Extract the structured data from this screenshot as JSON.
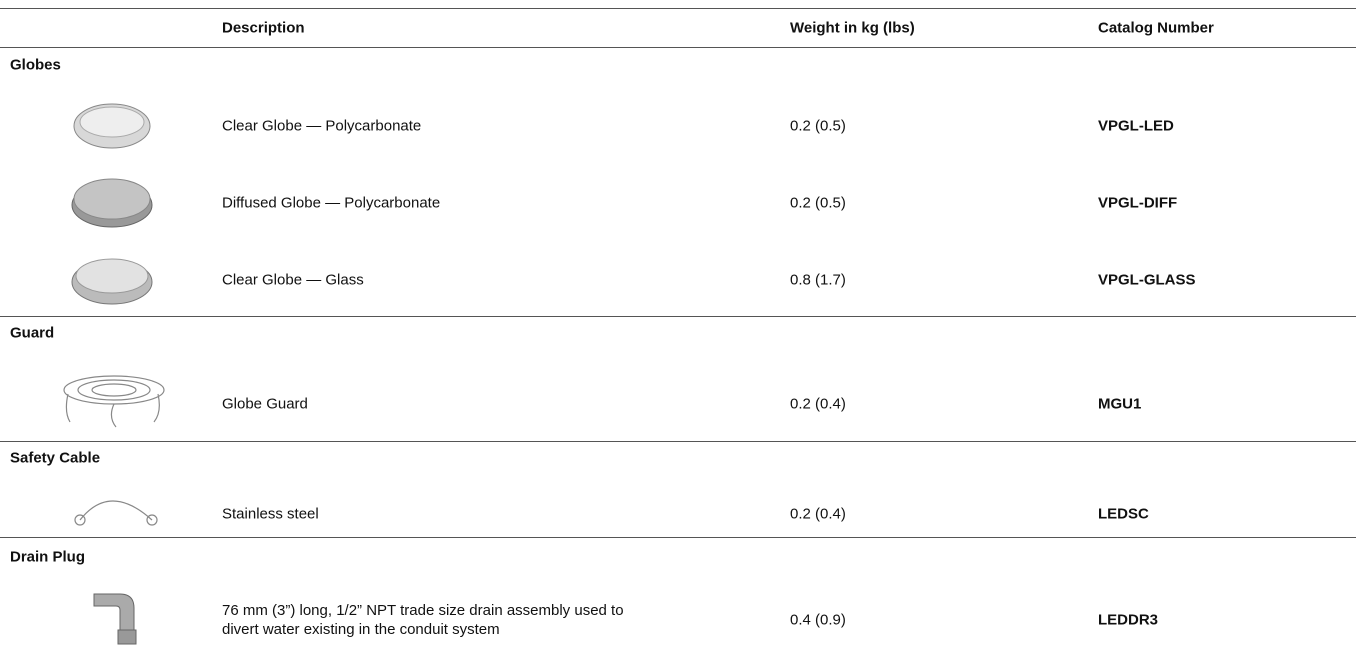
{
  "table": {
    "columns": [
      "Description",
      "Weight in kg (lbs)",
      "Catalog Number"
    ],
    "sections": [
      {
        "title": "Globes",
        "rows": [
          {
            "description": "Clear Globe — Polycarbonate",
            "weight": "0.2 (0.5)",
            "catalog": "VPGL-LED"
          },
          {
            "description": "Diffused Globe — Polycarbonate",
            "weight": "0.2 (0.5)",
            "catalog": "VPGL-DIFF"
          },
          {
            "description": "Clear Globe — Glass",
            "weight": "0.8 (1.7)",
            "catalog": "VPGL-GLASS"
          }
        ]
      },
      {
        "title": "Guard",
        "rows": [
          {
            "description": "Globe Guard",
            "weight": "0.2 (0.4)",
            "catalog": "MGU1"
          }
        ]
      },
      {
        "title": "Safety Cable",
        "rows": [
          {
            "description": "Stainless steel",
            "weight": "0.2 (0.4)",
            "catalog": "LEDSC"
          }
        ]
      },
      {
        "title": "Drain Plug",
        "rows": [
          {
            "description": "76 mm (3”) long, 1/2” NPT trade size drain assembly used to divert water existing in the conduit system",
            "weight": "0.4 (0.9)",
            "catalog": "LEDDR3"
          }
        ]
      }
    ]
  }
}
